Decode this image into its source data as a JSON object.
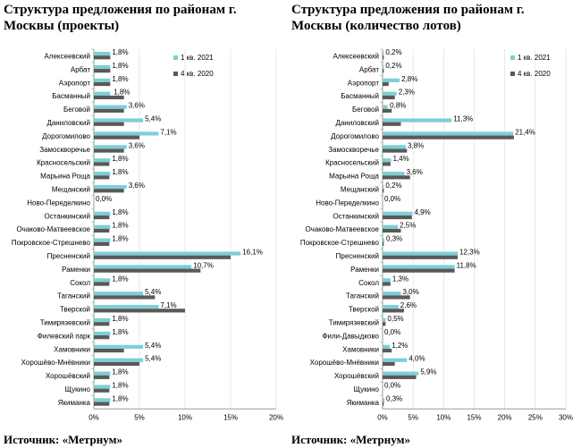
{
  "colors": {
    "series1": "#7ecfd4",
    "series2": "#595959",
    "axis": "#9a9a9a",
    "grid": "#d0d0d0"
  },
  "source_left": "Источник: «Метрнум»",
  "source_right": "Источник: «Метрнум»",
  "chart_data": [
    {
      "type": "bar",
      "orientation": "horizontal",
      "title": "Структура предложения по районам г. Москвы (проекты)",
      "legend_position": "top-right",
      "xlim": [
        0,
        20
      ],
      "xticks": [
        "0%",
        "5%",
        "10%",
        "15%",
        "20%"
      ],
      "categories": [
        "Алексеевский",
        "Арбат",
        "Аэропорт",
        "Басманный",
        "Беговой",
        "Даниловский",
        "Дорогомилово",
        "Замоскворечье",
        "Красносельский",
        "Марьина Роща",
        "Мещанский",
        "Ново-Переделкино",
        "Останкинский",
        "Очаково-Матвеевское",
        "Покровское-Стрешнево",
        "Пресненский",
        "Раменки",
        "Сокол",
        "Таганский",
        "Тверской",
        "Тимирязевский",
        "Филевский парк",
        "Хамовники",
        "Хорошёво-Мнёвники",
        "Хорошёвский",
        "Щукино",
        "Якиманка"
      ],
      "labels": [
        "1,8%",
        "1,8%",
        "1,8%",
        "1,8%",
        "3,6%",
        "5,4%",
        "7,1%",
        "3,6%",
        "1,8%",
        "1,8%",
        "3,6%",
        "0,0%",
        "1,8%",
        "1,8%",
        "1,8%",
        "16,1%",
        "10,7%",
        "1,8%",
        "5,4%",
        "7,1%",
        "1,8%",
        "1,8%",
        "5,4%",
        "5,4%",
        "1,8%",
        "1,8%",
        "1,8%"
      ],
      "series": [
        {
          "name": "1 кв. 2021",
          "values": [
            1.8,
            1.8,
            1.8,
            1.8,
            3.6,
            5.4,
            7.1,
            3.6,
            1.8,
            1.8,
            3.6,
            0.0,
            1.8,
            1.8,
            1.8,
            16.1,
            10.7,
            1.8,
            5.4,
            7.1,
            1.8,
            1.8,
            5.4,
            5.4,
            1.8,
            1.8,
            1.8
          ]
        },
        {
          "name": "4 кв. 2020",
          "values": [
            1.8,
            1.8,
            1.8,
            3.3,
            3.3,
            3.3,
            5.0,
            3.3,
            1.7,
            1.7,
            3.3,
            0.0,
            1.7,
            1.7,
            1.7,
            15.0,
            11.7,
            1.7,
            6.7,
            10.0,
            1.7,
            1.7,
            3.3,
            5.0,
            1.7,
            1.7,
            1.7
          ]
        }
      ]
    },
    {
      "type": "bar",
      "orientation": "horizontal",
      "title": "Структура предложения по районам г. Москвы (количество лотов)",
      "legend_position": "top-right",
      "xlim": [
        0,
        30
      ],
      "xticks": [
        "0%",
        "5%",
        "10%",
        "15%",
        "20%",
        "25%",
        "30%"
      ],
      "categories": [
        "Алексеевский",
        "Арбат",
        "Аэропорт",
        "Басманный",
        "Беговой",
        "Даниловский",
        "Дорогомилово",
        "Замоскворечье",
        "Красносельский",
        "Марьина Роща",
        "Мещанский",
        "Ново-Переделкино",
        "Останкинский",
        "Очаково-Матвеевское",
        "Покровское-Стрешнево",
        "Пресненский",
        "Раменки",
        "Сокол",
        "Таганский",
        "Тверской",
        "Тимирязевский",
        "Фили-Давыдково",
        "Хамовники",
        "Хорошёво-Мнёвники",
        "Хорошёвский",
        "Щукино",
        "Якиманка"
      ],
      "labels": [
        "0,2%",
        "0,2%",
        "2,8%",
        "2,3%",
        "0,8%",
        "11,3%",
        "21,4%",
        "3,8%",
        "1,4%",
        "3,6%",
        "0,2%",
        "0,0%",
        "4,9%",
        "2,5%",
        "0,3%",
        "12,3%",
        "11,8%",
        "1,3%",
        "3,0%",
        "2,6%",
        "0,5%",
        "0,0%",
        "1,2%",
        "4,0%",
        "5,9%",
        "0,0%",
        "0,3%"
      ],
      "series": [
        {
          "name": "1 кв. 2021",
          "values": [
            0.2,
            0.2,
            2.8,
            2.3,
            0.8,
            11.3,
            21.4,
            3.8,
            1.4,
            3.6,
            0.2,
            0.0,
            4.9,
            2.5,
            0.3,
            12.3,
            11.8,
            1.3,
            3.0,
            2.6,
            0.5,
            0.0,
            1.2,
            4.0,
            5.9,
            0.0,
            0.3
          ]
        },
        {
          "name": "4 кв. 2020",
          "values": [
            0.2,
            0.2,
            1.0,
            2.0,
            1.5,
            3.0,
            21.5,
            4.0,
            1.3,
            4.5,
            0.2,
            0.0,
            4.8,
            3.0,
            0.2,
            12.3,
            11.8,
            1.3,
            4.5,
            3.5,
            0.5,
            0.0,
            1.5,
            2.0,
            5.5,
            0.0,
            0.2
          ]
        }
      ]
    }
  ]
}
